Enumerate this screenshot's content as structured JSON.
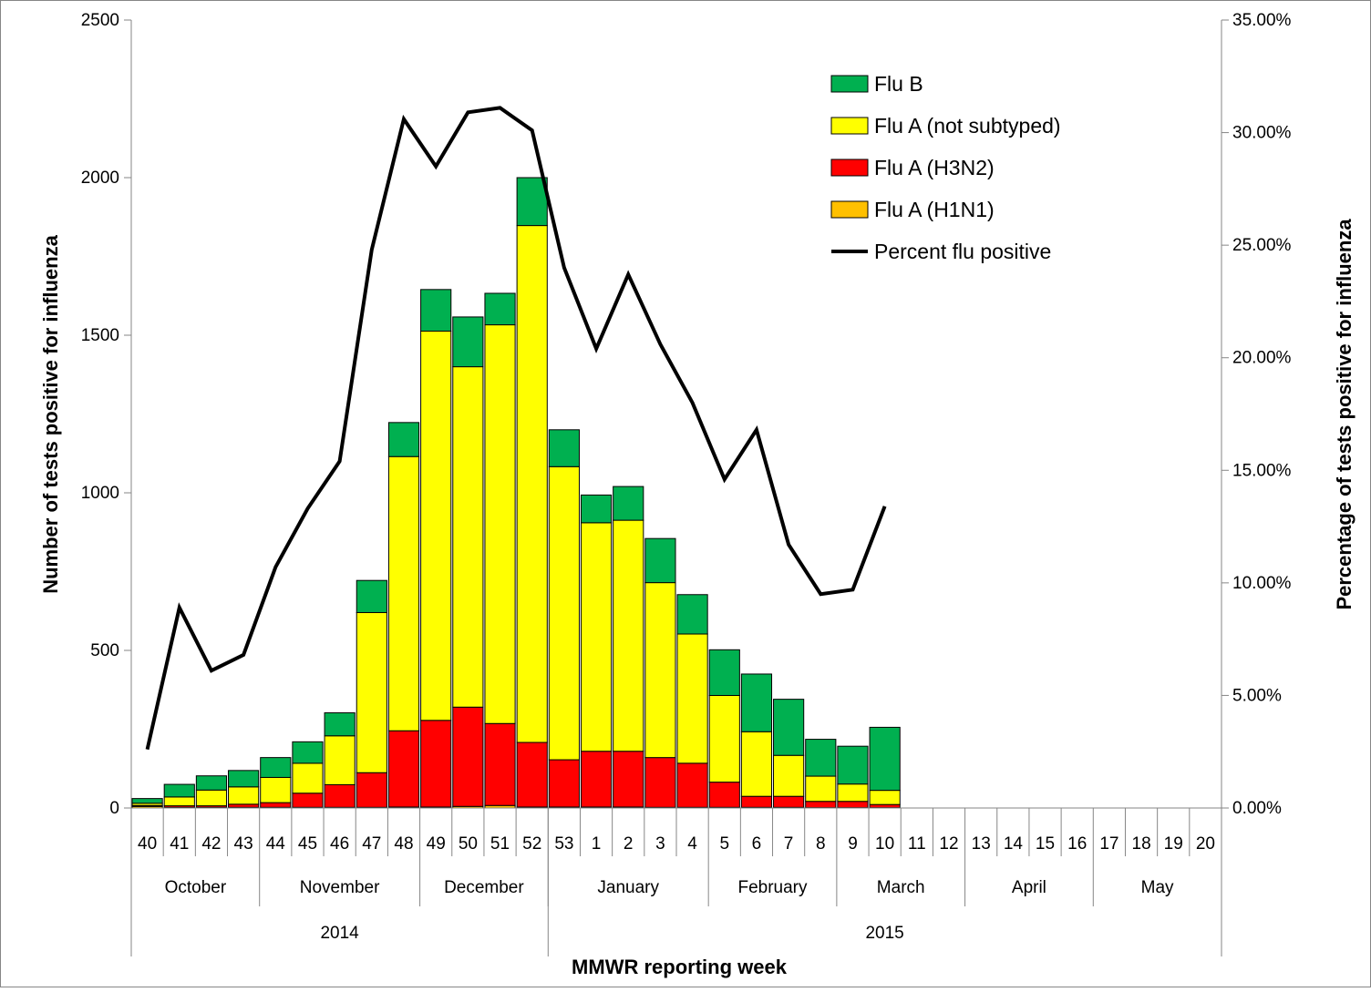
{
  "colors": {
    "flu_b": "#00b050",
    "flu_a_not_subtyped": "#ffff00",
    "flu_a_h3n2": "#ff0000",
    "flu_a_h1n1": "#ffc000",
    "percent_line": "#000000"
  },
  "chart_data": {
    "type": "bar",
    "stacked": true,
    "title": "",
    "xlabel": "MMWR reporting week",
    "ylabel": "Number of tests positive for influenza",
    "y2label": "Percentage of  tests  positive for influenza",
    "ylim": [
      0,
      2500
    ],
    "y2lim": [
      0,
      35
    ],
    "yticks": [
      "0",
      "500",
      "1000",
      "1500",
      "2000",
      "2500"
    ],
    "y2ticks": [
      "0.00%",
      "5.00%",
      "10.00%",
      "15.00%",
      "20.00%",
      "25.00%",
      "30.00%",
      "35.00%"
    ],
    "categories": [
      "40",
      "41",
      "42",
      "43",
      "44",
      "45",
      "46",
      "47",
      "48",
      "49",
      "50",
      "51",
      "52",
      "53",
      "1",
      "2",
      "3",
      "4",
      "5",
      "6",
      "7",
      "8",
      "9",
      "10",
      "11",
      "12",
      "13",
      "14",
      "15",
      "16",
      "17",
      "18",
      "19",
      "20"
    ],
    "months": [
      {
        "label": "October",
        "start": 0,
        "end": 4
      },
      {
        "label": "November",
        "start": 4,
        "end": 9
      },
      {
        "label": "December",
        "start": 9,
        "end": 13
      },
      {
        "label": "January",
        "start": 13,
        "end": 18
      },
      {
        "label": "February",
        "start": 18,
        "end": 22
      },
      {
        "label": "March",
        "start": 22,
        "end": 26
      },
      {
        "label": "April",
        "start": 26,
        "end": 30
      },
      {
        "label": "May",
        "start": 30,
        "end": 34
      }
    ],
    "years": [
      {
        "label": "2014",
        "start": 0,
        "end": 13
      },
      {
        "label": "2015",
        "start": 13,
        "end": 34
      }
    ],
    "series": [
      {
        "name": "Flu A (H1N1)",
        "color_key": "flu_a_h1n1",
        "values": [
          5,
          2,
          2,
          2,
          2,
          2,
          2,
          2,
          3,
          3,
          5,
          8,
          3,
          3,
          3,
          3,
          2,
          2,
          2,
          2,
          2,
          1,
          1,
          1,
          0,
          0,
          0,
          0,
          0,
          0,
          0,
          0,
          0,
          0
        ]
      },
      {
        "name": "Flu A (H3N2)",
        "color_key": "flu_a_h3n2",
        "values": [
          3,
          5,
          5,
          10,
          15,
          45,
          72,
          110,
          242,
          275,
          315,
          260,
          205,
          150,
          177,
          177,
          158,
          140,
          80,
          35,
          35,
          20,
          20,
          10,
          0,
          0,
          0,
          0,
          0,
          0,
          0,
          0,
          0,
          0
        ]
      },
      {
        "name": "Flu A (not subtyped)",
        "color_key": "flu_a_not_subtyped",
        "values": [
          7,
          28,
          50,
          55,
          80,
          95,
          155,
          508,
          870,
          1235,
          1080,
          1265,
          1640,
          930,
          725,
          733,
          555,
          410,
          275,
          205,
          130,
          80,
          55,
          45,
          0,
          0,
          0,
          0,
          0,
          0,
          0,
          0,
          0,
          0
        ]
      },
      {
        "name": "Flu B",
        "color_key": "flu_b",
        "values": [
          15,
          40,
          45,
          52,
          63,
          68,
          73,
          102,
          108,
          132,
          158,
          100,
          152,
          117,
          88,
          107,
          140,
          125,
          145,
          183,
          178,
          117,
          120,
          200,
          0,
          0,
          0,
          0,
          0,
          0,
          0,
          0,
          0,
          0
        ]
      }
    ],
    "line_series": {
      "name": "Percent flu positive",
      "axis": "right",
      "values": [
        2.6,
        8.9,
        6.1,
        6.8,
        10.7,
        13.3,
        15.4,
        24.8,
        30.6,
        28.5,
        30.9,
        31.1,
        30.1,
        24.0,
        20.4,
        23.7,
        20.6,
        18.0,
        14.6,
        16.8,
        11.7,
        9.5,
        9.7,
        13.4,
        null,
        null,
        null,
        null,
        null,
        null,
        null,
        null,
        null,
        null
      ]
    },
    "legend": {
      "position": "top-right",
      "entries": [
        {
          "label": "Flu B",
          "color_key": "flu_b",
          "kind": "box"
        },
        {
          "label": "Flu A (not subtyped)",
          "color_key": "flu_a_not_subtyped",
          "kind": "box"
        },
        {
          "label": "Flu A (H3N2)",
          "color_key": "flu_a_h3n2",
          "kind": "box"
        },
        {
          "label": "Flu A (H1N1)",
          "color_key": "flu_a_h1n1",
          "kind": "box"
        },
        {
          "label": "Percent flu positive",
          "color_key": "percent_line",
          "kind": "line"
        }
      ]
    },
    "grid": false
  }
}
